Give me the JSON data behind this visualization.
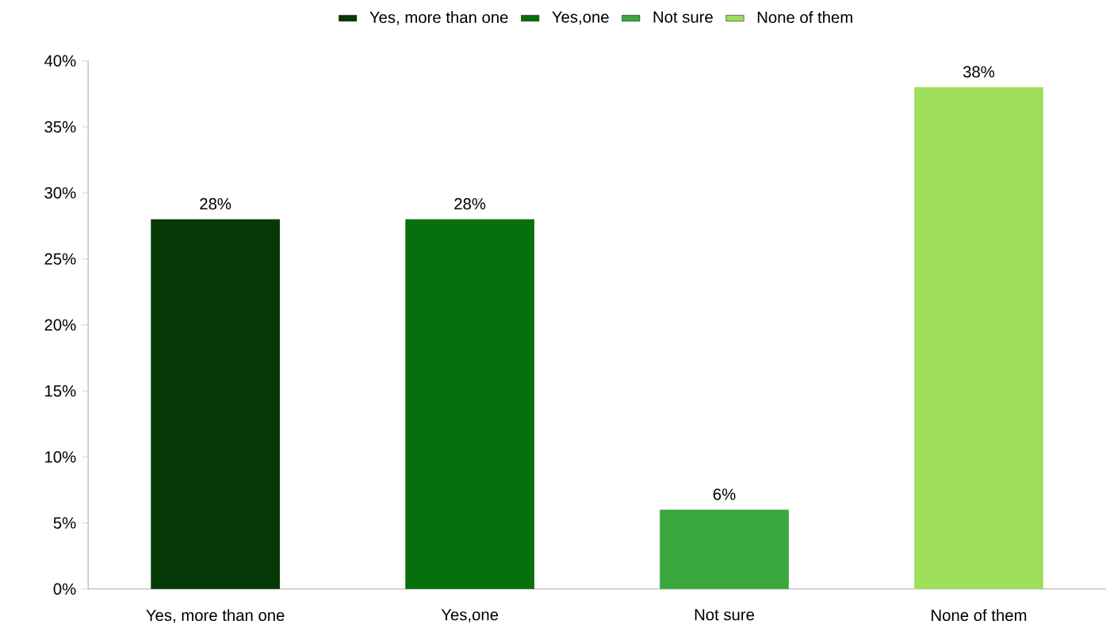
{
  "chart_data": {
    "type": "bar",
    "categories": [
      "Yes, more than one",
      "Yes,one",
      "Not sure",
      "None of them"
    ],
    "series": [
      {
        "name": "Yes, more than one",
        "color": "#063806",
        "values": [
          28,
          null,
          null,
          null
        ],
        "value_labels": [
          "28%",
          null,
          null,
          null
        ]
      },
      {
        "name": "Yes,one",
        "color": "#076f0b",
        "values": [
          null,
          28,
          null,
          null
        ],
        "value_labels": [
          null,
          "28%",
          null,
          null
        ]
      },
      {
        "name": "Not sure",
        "color": "#3aa73c",
        "values": [
          null,
          null,
          6,
          null
        ],
        "value_labels": [
          null,
          null,
          "6%",
          null
        ]
      },
      {
        "name": "None of them",
        "color": "#9ede5a",
        "values": [
          null,
          null,
          null,
          38
        ],
        "value_labels": [
          null,
          null,
          null,
          "38%"
        ]
      }
    ],
    "ylim": [
      0,
      40
    ],
    "yticks": [
      {
        "value": 0,
        "label": "0%"
      },
      {
        "value": 5,
        "label": "5%"
      },
      {
        "value": 10,
        "label": "10%"
      },
      {
        "value": 15,
        "label": "15%"
      },
      {
        "value": 20,
        "label": "20%"
      },
      {
        "value": 25,
        "label": "25%"
      },
      {
        "value": 30,
        "label": "30%"
      },
      {
        "value": 35,
        "label": "35%"
      },
      {
        "value": 40,
        "label": "40%"
      }
    ],
    "legend": "top"
  }
}
